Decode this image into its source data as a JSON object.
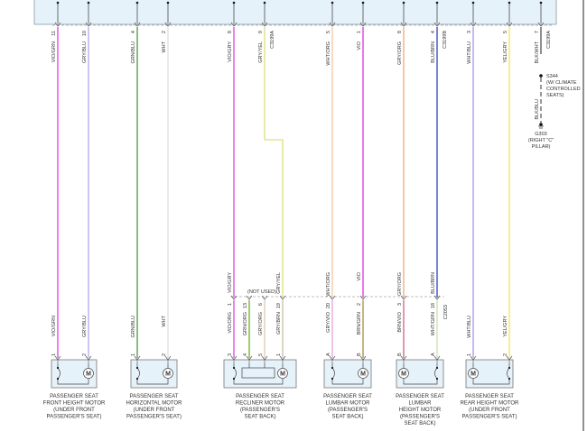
{
  "top_connector": {
    "wires": [
      {
        "pin": "11",
        "code": "VIO/GRN",
        "color": "#e040e0"
      },
      {
        "pin": "10",
        "code": "GRY/BLU",
        "color": "#b4a8f0"
      },
      {
        "pin": "4",
        "code": "GRN/BLU",
        "color": "#4c9a3c"
      },
      {
        "pin": "2",
        "code": "WHT",
        "color": "#dddddd"
      },
      {
        "pin": "8",
        "code": "VIO/GRY",
        "color": "#e040e0"
      },
      {
        "pin": "9",
        "code": "GRY/YEL",
        "color": "#dce078",
        "conn": "C3199A"
      },
      {
        "pin": "5",
        "code": "WHT/ORG",
        "color": "#f2c8a0"
      },
      {
        "pin": "1",
        "code": "VIO",
        "color": "#e030e0"
      },
      {
        "pin": "8",
        "code": "GRY/ORG",
        "color": "#f0a878"
      },
      {
        "pin": "4",
        "code": "BLU/BRN",
        "color": "#3040c0",
        "conn": "C3199B"
      },
      {
        "pin": "3",
        "code": "WHT/BLU",
        "color": "#a098f0"
      },
      {
        "pin": "5",
        "code": "YEL/GRY",
        "color": "#f0e458"
      },
      {
        "pin": "7",
        "code": "BLK/WHT",
        "color": "#555555",
        "conn": "C3199A"
      }
    ]
  },
  "splice": {
    "id": "S344",
    "lines": [
      "(W/ CLIMATE",
      "CONTROLLED",
      "SEATS)"
    ],
    "wire_code": "BLK/BLU",
    "ground_id": "G303",
    "ground_lines": [
      "(RIGHT \"C\"",
      "PILLAR)"
    ]
  },
  "mid_connector": {
    "id": "C2053",
    "not_used": "(NOT USED)",
    "upper_codes": [
      "VIO/GRY",
      "GRY/YEL",
      "WHT/ORG",
      "VIO",
      "GRY/ORG",
      "BLU/BRN"
    ],
    "pins": [
      {
        "pin": "1",
        "code": "VIO/ORG",
        "color": "#e040e0"
      },
      {
        "pin": "13",
        "code": "GRN/ORG",
        "color": "#70b020"
      },
      {
        "pin": "6",
        "code": "GRY/ORG",
        "color": "#e0c8b0"
      },
      {
        "pin": "19",
        "code": "GRY/BRN",
        "color": "#c8c0a8"
      },
      {
        "pin": "20",
        "code": "GRY/VIO",
        "color": "#e8a0e0"
      },
      {
        "pin": "2",
        "code": "BRN/GRN",
        "color": "#a09040"
      },
      {
        "pin": "3",
        "code": "BRN/VIO",
        "color": "#d06080"
      },
      {
        "pin": "18",
        "code": "WHT/GRN",
        "color": "#c8e0b0"
      }
    ]
  },
  "components": [
    {
      "pins": [
        "1",
        "2"
      ],
      "label": [
        "PASSENGER SEAT",
        "FRONT HEIGHT MOTOR",
        "(UNDER FRONT",
        "PASSENGER'S SEAT)"
      ]
    },
    {
      "pins": [
        "1",
        "2"
      ],
      "label": [
        "PASSENGER SEAT",
        "HORIZONTAL MOTOR",
        "(UNDER FRONT",
        "PASSENGER'S SEAT)"
      ]
    },
    {
      "pins": [
        "3",
        "4",
        "5",
        "1"
      ],
      "label": [
        "PASSENGER SEAT",
        "RECLINER MOTOR",
        "(PASSENGER'S",
        "SEAT BACK)"
      ]
    },
    {
      "pins": [
        "A",
        "B"
      ],
      "label": [
        "PASSENGER SEAT",
        "LUMBAR MOTOR",
        "(PASSENGER'S",
        "SEAT BACK)"
      ]
    },
    {
      "pins": [
        "B",
        "A"
      ],
      "label": [
        "PASSENGER SEAT",
        "LUMBAR",
        "HEIGHT MOTOR",
        "(PASSENGER'S",
        "SEAT BACK)"
      ]
    },
    {
      "pins": [
        "1",
        "2"
      ],
      "label": [
        "PASSENGER SEAT",
        "REAR HEIGHT MOTOR",
        "(UNDER FRONT",
        "PASSENGER'S SEAT)"
      ]
    }
  ],
  "motor_symbol": "M"
}
